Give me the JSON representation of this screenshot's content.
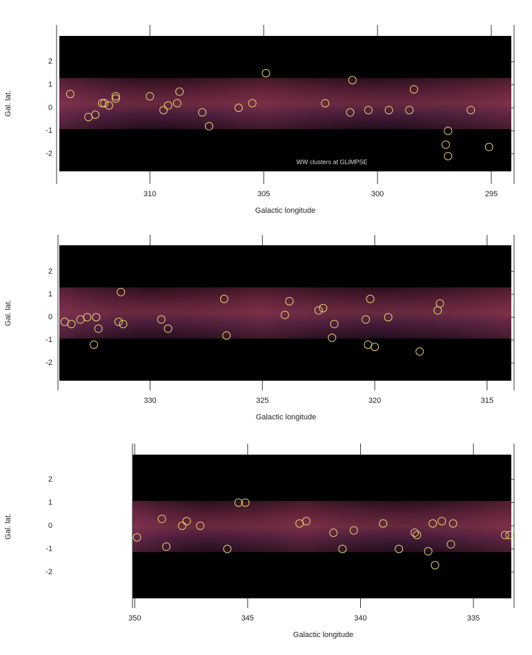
{
  "chart_data": [
    {
      "type": "scatter",
      "xlabel": "Galactic longitude",
      "ylabel": "Gal. lat.",
      "annotation": "WW clusters at GLIMPSE",
      "xlim": [
        314.1,
        294.0
      ],
      "ylim": [
        -3.3,
        3.6
      ],
      "xticks": [
        310,
        305,
        300,
        295
      ],
      "yticks": [
        2,
        1,
        0,
        -1,
        -2
      ],
      "color": "#e6d470",
      "x": [
        313.5,
        312.7,
        312.4,
        312.1,
        312.0,
        311.8,
        311.5,
        311.5,
        310.0,
        309.4,
        309.2,
        308.8,
        308.7,
        307.7,
        307.4,
        306.1,
        305.5,
        304.9,
        302.3,
        301.2,
        301.1,
        300.4,
        299.5,
        298.6,
        298.4,
        296.9,
        297.0,
        296.9,
        295.9,
        295.1
      ],
      "y": [
        0.6,
        -0.4,
        -0.3,
        0.2,
        0.2,
        0.1,
        0.4,
        0.5,
        0.5,
        -0.1,
        0.1,
        0.2,
        0.7,
        -0.2,
        -0.8,
        0.0,
        0.2,
        1.5,
        0.2,
        -0.2,
        1.2,
        -0.1,
        -0.1,
        -0.1,
        0.8,
        -1.0,
        -1.6,
        -2.1,
        -0.1,
        -1.7
      ]
    },
    {
      "type": "scatter",
      "xlabel": "Galactic longitude",
      "ylabel": "Gal. lat.",
      "xlim": [
        334.1,
        313.8
      ],
      "ylim": [
        -3.2,
        3.6
      ],
      "xticks": [
        330,
        325,
        320,
        315
      ],
      "yticks": [
        2,
        1,
        0,
        -1,
        -2
      ],
      "color": "#e6d470",
      "x": [
        333.8,
        333.5,
        333.1,
        332.8,
        332.4,
        332.3,
        332.5,
        331.3,
        331.4,
        331.2,
        329.5,
        329.2,
        326.7,
        326.6,
        324.0,
        323.8,
        322.5,
        322.3,
        321.9,
        321.8,
        320.4,
        320.2,
        320.3,
        320.0,
        319.4,
        318.0,
        317.2,
        317.1
      ],
      "y": [
        -0.2,
        -0.3,
        -0.1,
        0.0,
        0.0,
        -0.5,
        -1.2,
        1.1,
        -0.2,
        -0.3,
        -0.1,
        -0.5,
        0.8,
        -0.8,
        0.1,
        0.7,
        0.3,
        0.4,
        -0.9,
        -0.3,
        -0.1,
        0.8,
        -1.2,
        -1.3,
        0.0,
        -1.5,
        0.3,
        0.6
      ]
    },
    {
      "type": "scatter",
      "xlabel": "Galactic longitude",
      "ylabel": "Gal. lat.",
      "xlim": [
        350.1,
        333.2
      ],
      "ylim": [
        -3.55,
        3.55
      ],
      "xticks": [
        350,
        345,
        340,
        335
      ],
      "yticks": [
        2,
        1,
        0,
        -1,
        -2
      ],
      "color": "#e6d470",
      "x": [
        349.9,
        348.8,
        348.6,
        347.9,
        347.7,
        347.1,
        345.9,
        345.4,
        345.1,
        342.7,
        342.4,
        341.2,
        340.8,
        340.3,
        339.0,
        338.3,
        337.6,
        337.5,
        337.0,
        336.7,
        336.8,
        336.4,
        336.0,
        335.9,
        333.6,
        333.4
      ],
      "y": [
        -0.5,
        0.3,
        -0.9,
        0.0,
        0.2,
        0.0,
        -1.0,
        1.0,
        1.0,
        0.1,
        0.2,
        -0.3,
        -1.0,
        -0.2,
        0.1,
        -1.0,
        -0.3,
        -0.4,
        -1.1,
        -1.7,
        0.1,
        0.2,
        -0.8,
        0.1,
        -0.4,
        -0.4
      ]
    }
  ]
}
